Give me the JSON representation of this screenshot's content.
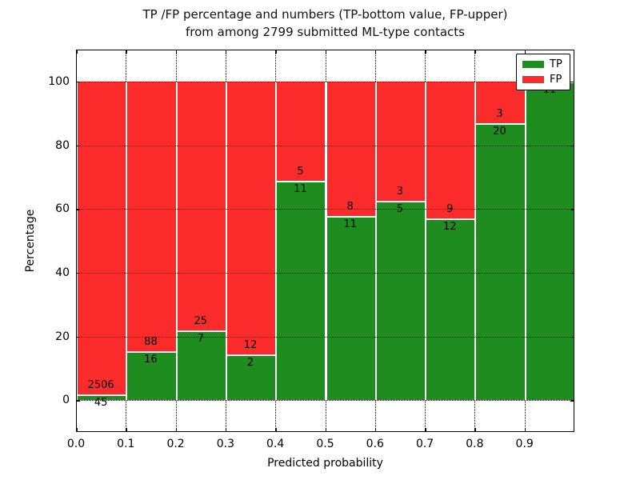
{
  "title": {
    "line1": "TP /FP percentage and numbers (TP-bottom value, FP-upper)",
    "line2": "from among 2799 submitted ML-type contacts"
  },
  "y_axis": {
    "label": "Percentage",
    "ticks": [
      "0",
      "20",
      "40",
      "60",
      "80",
      "100"
    ]
  },
  "x_axis": {
    "label": "Predicted probability",
    "ticks": [
      "0.0",
      "0.1",
      "0.2",
      "0.3",
      "0.4",
      "0.5",
      "0.6",
      "0.7",
      "0.8",
      "0.9"
    ]
  },
  "legend": {
    "items": [
      {
        "label": "TP",
        "color": "#1e8c1e"
      },
      {
        "label": "FP",
        "color": "#fb2b2b"
      }
    ]
  },
  "colors": {
    "tp": "#1e8c1e",
    "fp": "#fb2b2b",
    "grid": "#000000",
    "frame": "#000000",
    "background": "#ffffff",
    "annotation": "#000000"
  },
  "chart_data": {
    "type": "bar",
    "stacked": true,
    "normalized": "each bin scaled to 100%",
    "title": "TP /FP percentage and numbers (TP-bottom value, FP-upper) from among 2799 submitted ML-type contacts",
    "xlabel": "Predicted probability",
    "ylabel": "Percentage",
    "total_submitted": 2799,
    "bin_edges": [
      0.0,
      0.1,
      0.2,
      0.3,
      0.4,
      0.5,
      0.6,
      0.7,
      0.8,
      0.9,
      1.0
    ],
    "categories": [
      "0.0-0.1",
      "0.1-0.2",
      "0.2-0.3",
      "0.3-0.4",
      "0.4-0.5",
      "0.5-0.6",
      "0.6-0.7",
      "0.7-0.8",
      "0.8-0.9",
      "0.9-1.0"
    ],
    "series": [
      {
        "name": "TP",
        "color": "#1e8c1e",
        "counts": [
          45,
          16,
          7,
          2,
          11,
          11,
          5,
          12,
          20,
          11
        ],
        "percent": [
          1.76,
          15.38,
          21.88,
          14.29,
          68.75,
          57.89,
          62.5,
          57.14,
          86.96,
          100.0
        ]
      },
      {
        "name": "FP",
        "color": "#fb2b2b",
        "counts": [
          2506,
          88,
          25,
          12,
          5,
          8,
          3,
          9,
          3,
          0
        ],
        "percent": [
          98.24,
          84.62,
          78.13,
          85.71,
          31.25,
          42.11,
          37.5,
          42.86,
          13.04,
          0.0
        ]
      }
    ],
    "yticks": [
      0,
      20,
      40,
      60,
      80,
      100
    ],
    "xticks": [
      0.0,
      0.1,
      0.2,
      0.3,
      0.4,
      0.5,
      0.6,
      0.7,
      0.8,
      0.9
    ],
    "ylim": [
      -10,
      110
    ],
    "xlim": [
      0.0,
      1.0
    ],
    "grid": "dotted, both axes",
    "legend_position": "upper right"
  }
}
